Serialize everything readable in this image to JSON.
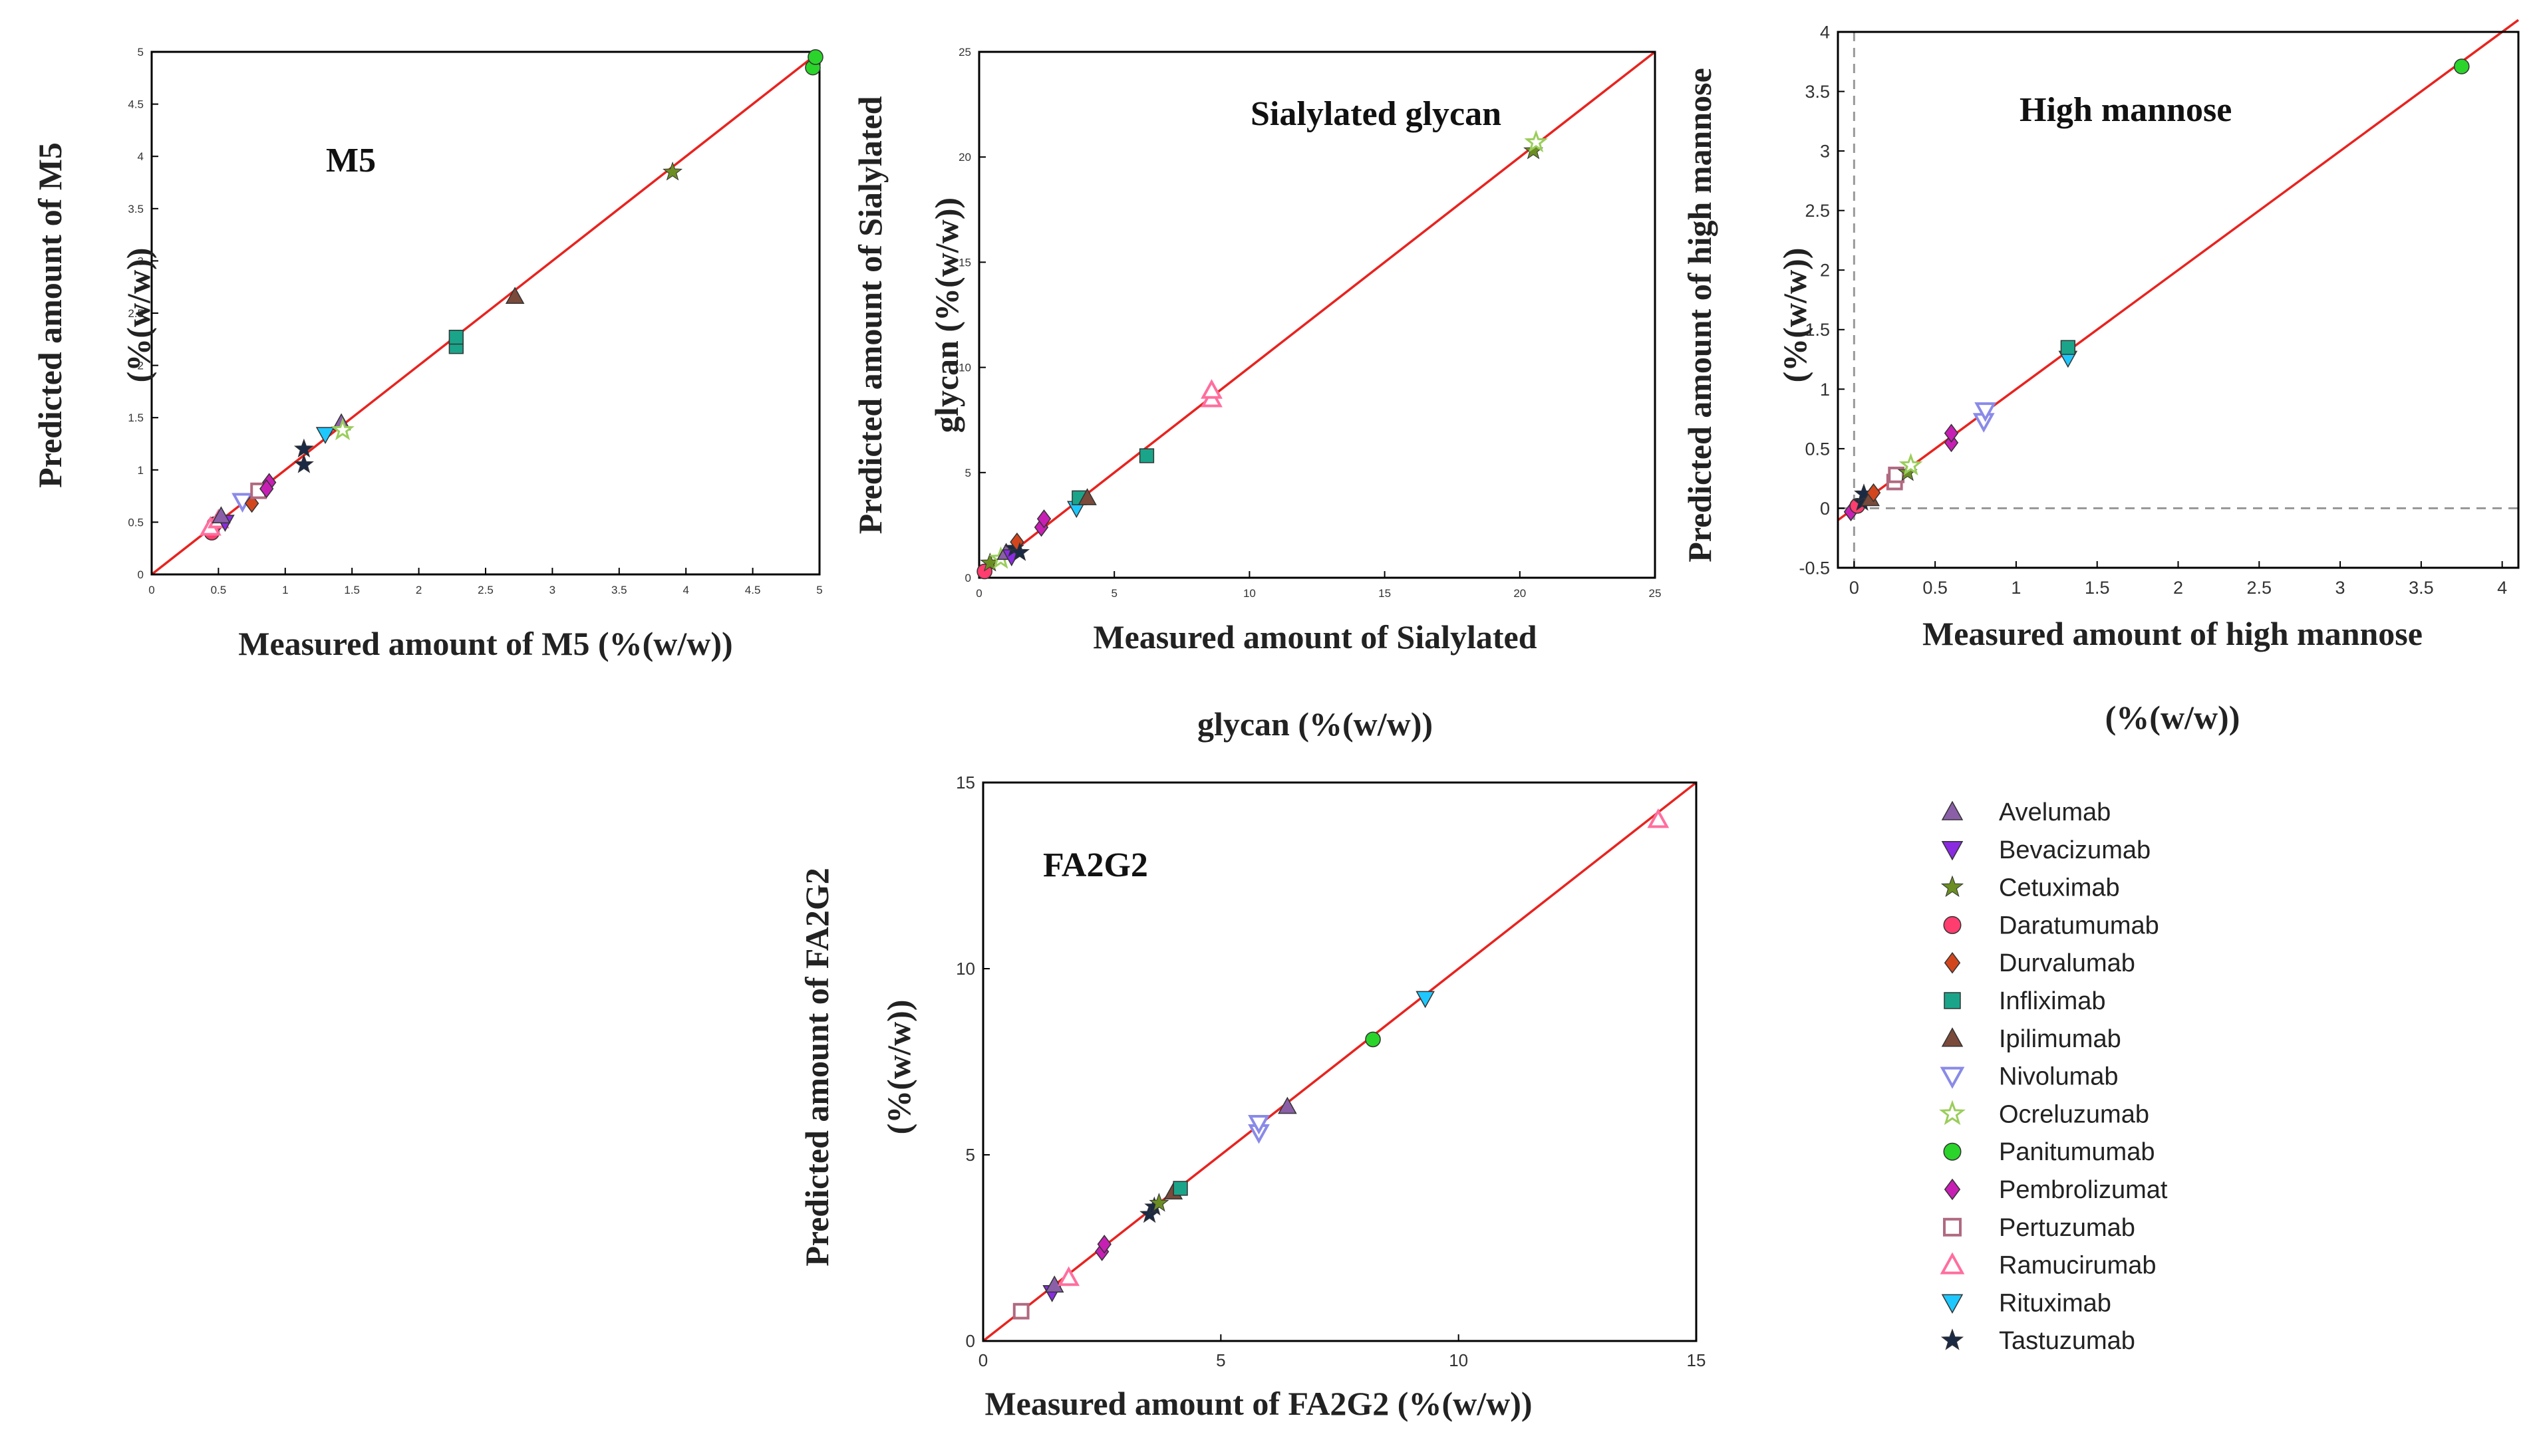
{
  "colors": {
    "frame": "#000000",
    "fit_line": "#e8231f",
    "zero_line": "#999999"
  },
  "legend": [
    {
      "name": "Avelumab",
      "marker": "triangle-up",
      "color": "#8a5fa8",
      "filled": true
    },
    {
      "name": "Bevacizumab",
      "marker": "triangle-down",
      "color": "#8a2be2",
      "filled": true
    },
    {
      "name": "Cetuximab",
      "marker": "star",
      "color": "#6b8e23",
      "filled": true
    },
    {
      "name": "Daratumumab",
      "marker": "circle",
      "color": "#ff3d6e",
      "filled": true
    },
    {
      "name": "Durvalumab",
      "marker": "diamond",
      "color": "#d2461e",
      "filled": true
    },
    {
      "name": "Infliximab",
      "marker": "square",
      "color": "#1aa58a",
      "filled": true
    },
    {
      "name": "Ipilimumab",
      "marker": "triangle-up",
      "color": "#7a4a3a",
      "filled": true
    },
    {
      "name": "Nivolumab",
      "marker": "triangle-down",
      "color": "#8a8ae8",
      "filled": false
    },
    {
      "name": "Ocreluzumab",
      "marker": "star",
      "color": "#9acd5a",
      "filled": false
    },
    {
      "name": "Panitumumab",
      "marker": "circle",
      "color": "#2ad42a",
      "filled": true
    },
    {
      "name": "Pembrolizumat",
      "marker": "diamond",
      "color": "#c71fb4",
      "filled": true
    },
    {
      "name": "Pertuzumab",
      "marker": "square",
      "color": "#b06a80",
      "filled": false
    },
    {
      "name": "Ramucirumab",
      "marker": "triangle-up",
      "color": "#ff6e9e",
      "filled": false
    },
    {
      "name": "Rituximab",
      "marker": "triangle-down",
      "color": "#1ec8ff",
      "filled": true
    },
    {
      "name": "Tastuzumab",
      "marker": "star",
      "color": "#1b2a44",
      "filled": true
    }
  ],
  "chart_data": [
    {
      "id": "m5",
      "type": "scatter",
      "title": "M5",
      "xlabel": "Measured amount of M5 (%(w/w))",
      "ylabel_lines": [
        "Predicted amount of M5",
        "(%(w/w))"
      ],
      "xlim": [
        0,
        5
      ],
      "ylim": [
        0,
        5
      ],
      "xticks": [
        0,
        0.5,
        1,
        1.5,
        2,
        2.5,
        3,
        3.5,
        4,
        4.5,
        5
      ],
      "yticks": [
        0,
        0.5,
        1,
        1.5,
        2,
        2.5,
        3,
        3.5,
        4,
        4.5,
        5
      ],
      "xtick_labels": [
        "0",
        "0.5",
        "1",
        "1.5",
        "2",
        "2.5",
        "3",
        "3.5",
        "4",
        "4.5",
        "5"
      ],
      "ytick_labels": [
        "0",
        "0.5",
        "1",
        "1.5",
        "2",
        "2.5",
        "3",
        "3.5",
        "4",
        "4.5",
        "5"
      ],
      "fit_line": [
        [
          0,
          0
        ],
        [
          5,
          5
        ]
      ],
      "points": [
        {
          "x": 0.45,
          "y": 0.4,
          "s": "Daratumumab"
        },
        {
          "x": 0.47,
          "y": 0.48,
          "s": "Daratumumab"
        },
        {
          "x": 0.44,
          "y": 0.45,
          "s": "Ramucirumab"
        },
        {
          "x": 0.5,
          "y": 0.52,
          "s": "Ramucirumab"
        },
        {
          "x": 0.55,
          "y": 0.5,
          "s": "Bevacizumab"
        },
        {
          "x": 0.52,
          "y": 0.56,
          "s": "Avelumab"
        },
        {
          "x": 0.68,
          "y": 0.7,
          "s": "Nivolumab"
        },
        {
          "x": 0.75,
          "y": 0.68,
          "s": "Durvalumab"
        },
        {
          "x": 0.8,
          "y": 0.8,
          "s": "Pertuzumab"
        },
        {
          "x": 0.88,
          "y": 0.88,
          "s": "Pembrolizumat"
        },
        {
          "x": 0.86,
          "y": 0.82,
          "s": "Pembrolizumat"
        },
        {
          "x": 1.14,
          "y": 1.05,
          "s": "Tastuzumab"
        },
        {
          "x": 1.14,
          "y": 1.2,
          "s": "Tastuzumab"
        },
        {
          "x": 1.3,
          "y": 1.34,
          "s": "Rituximab"
        },
        {
          "x": 1.42,
          "y": 1.45,
          "s": "Avelumab"
        },
        {
          "x": 1.43,
          "y": 1.38,
          "s": "Ocreluzumab"
        },
        {
          "x": 2.28,
          "y": 2.18,
          "s": "Infliximab"
        },
        {
          "x": 2.28,
          "y": 2.27,
          "s": "Infliximab"
        },
        {
          "x": 2.72,
          "y": 2.66,
          "s": "Ipilimumab"
        },
        {
          "x": 3.9,
          "y": 3.85,
          "s": "Cetuximab"
        },
        {
          "x": 4.95,
          "y": 4.85,
          "s": "Panitumumab"
        },
        {
          "x": 4.97,
          "y": 4.95,
          "s": "Panitumumab"
        }
      ]
    },
    {
      "id": "sialylated",
      "type": "scatter",
      "title": "Sialylated glycan",
      "xlabel_lines": [
        "Measured amount of Sialylated",
        "glycan (%(w/w))"
      ],
      "ylabel_lines": [
        "Predicted amount of Sialylated",
        "glycan (%(w/w))"
      ],
      "xlim": [
        0,
        25
      ],
      "ylim": [
        0,
        25
      ],
      "xticks": [
        0,
        5,
        10,
        15,
        20,
        25
      ],
      "yticks": [
        0,
        5,
        10,
        15,
        20,
        25
      ],
      "xtick_labels": [
        "0",
        "5",
        "10",
        "15",
        "20",
        "25"
      ],
      "ytick_labels": [
        "0",
        "5",
        "10",
        "15",
        "20",
        "25"
      ],
      "fit_line": [
        [
          0,
          0
        ],
        [
          25,
          25
        ]
      ],
      "points": [
        {
          "x": 0.2,
          "y": 0.3,
          "s": "Daratumumab"
        },
        {
          "x": 0.4,
          "y": 0.7,
          "s": "Cetuximab"
        },
        {
          "x": 0.8,
          "y": 0.9,
          "s": "Ocreluzumab"
        },
        {
          "x": 1.0,
          "y": 1.2,
          "s": "Avelumab"
        },
        {
          "x": 1.2,
          "y": 1.0,
          "s": "Bevacizumab"
        },
        {
          "x": 1.3,
          "y": 1.4,
          "s": "Tastuzumab"
        },
        {
          "x": 1.4,
          "y": 1.7,
          "s": "Durvalumab"
        },
        {
          "x": 1.5,
          "y": 1.2,
          "s": "Tastuzumab"
        },
        {
          "x": 2.3,
          "y": 2.4,
          "s": "Pembrolizumat"
        },
        {
          "x": 2.4,
          "y": 2.8,
          "s": "Pembrolizumat"
        },
        {
          "x": 3.6,
          "y": 3.3,
          "s": "Rituximab"
        },
        {
          "x": 3.7,
          "y": 3.8,
          "s": "Infliximab"
        },
        {
          "x": 4.0,
          "y": 3.8,
          "s": "Ipilimumab"
        },
        {
          "x": 6.2,
          "y": 5.8,
          "s": "Infliximab"
        },
        {
          "x": 8.6,
          "y": 8.5,
          "s": "Ramucirumab"
        },
        {
          "x": 8.6,
          "y": 8.9,
          "s": "Ramucirumab"
        },
        {
          "x": 20.5,
          "y": 20.3,
          "s": "Cetuximab"
        },
        {
          "x": 20.6,
          "y": 20.7,
          "s": "Ocreluzumab"
        }
      ]
    },
    {
      "id": "high-mannose",
      "type": "scatter",
      "title": "High mannose",
      "xlabel_lines": [
        "Measured amount of high mannose",
        "(%(w/w))"
      ],
      "ylabel_lines": [
        "Predicted amount of high mannose",
        "(%(w/w))"
      ],
      "xlim": [
        -0.1,
        4.1
      ],
      "ylim": [
        -0.5,
        4
      ],
      "xticks": [
        0,
        0.5,
        1,
        1.5,
        2,
        2.5,
        3,
        3.5,
        4
      ],
      "yticks": [
        -0.5,
        0,
        0.5,
        1,
        1.5,
        2,
        2.5,
        3,
        3.5,
        4
      ],
      "xtick_labels": [
        "0",
        "0.5",
        "1",
        "1.5",
        "2",
        "2.5",
        "3",
        "3.5",
        "4"
      ],
      "ytick_labels": [
        "-0.5",
        "0",
        "0.5",
        "1",
        "1.5",
        "2",
        "2.5",
        "3",
        "3.5",
        "4"
      ],
      "fit_line": [
        [
          -0.1,
          -0.1
        ],
        [
          4.1,
          4.1
        ]
      ],
      "points": [
        {
          "x": -0.02,
          "y": -0.03,
          "s": "Pembrolizumat"
        },
        {
          "x": 0.02,
          "y": 0.02,
          "s": "Daratumumab"
        },
        {
          "x": 0.05,
          "y": 0.05,
          "s": "Tastuzumab"
        },
        {
          "x": 0.06,
          "y": 0.12,
          "s": "Tastuzumab"
        },
        {
          "x": 0.1,
          "y": 0.08,
          "s": "Ipilimumab"
        },
        {
          "x": 0.12,
          "y": 0.13,
          "s": "Durvalumab"
        },
        {
          "x": 0.25,
          "y": 0.22,
          "s": "Pertuzumab"
        },
        {
          "x": 0.26,
          "y": 0.28,
          "s": "Pertuzumab"
        },
        {
          "x": 0.33,
          "y": 0.3,
          "s": "Cetuximab"
        },
        {
          "x": 0.35,
          "y": 0.36,
          "s": "Ocreluzumab"
        },
        {
          "x": 0.6,
          "y": 0.55,
          "s": "Pembrolizumat"
        },
        {
          "x": 0.6,
          "y": 0.63,
          "s": "Pembrolizumat"
        },
        {
          "x": 0.8,
          "y": 0.73,
          "s": "Nivolumab"
        },
        {
          "x": 0.81,
          "y": 0.82,
          "s": "Nivolumab"
        },
        {
          "x": 1.32,
          "y": 1.26,
          "s": "Rituximab"
        },
        {
          "x": 1.32,
          "y": 1.35,
          "s": "Infliximab"
        },
        {
          "x": 3.75,
          "y": 3.71,
          "s": "Panitumumab"
        }
      ]
    },
    {
      "id": "fa2g2",
      "type": "scatter",
      "title": "FA2G2",
      "xlabel": "Measured amount of FA2G2 (%(w/w))",
      "ylabel_lines": [
        "Predicted amount of FA2G2",
        "(%(w/w))"
      ],
      "xlim": [
        0,
        15
      ],
      "ylim": [
        0,
        15
      ],
      "xticks": [
        0,
        5,
        10,
        15
      ],
      "yticks": [
        0,
        5,
        10,
        15
      ],
      "xtick_labels": [
        "0",
        "5",
        "10",
        "15"
      ],
      "ytick_labels": [
        "0",
        "5",
        "10",
        "15"
      ],
      "fit_line": [
        [
          0,
          0
        ],
        [
          15,
          15
        ]
      ],
      "points": [
        {
          "x": 0.8,
          "y": 0.8,
          "s": "Pertuzumab"
        },
        {
          "x": 1.45,
          "y": 1.3,
          "s": "Bevacizumab"
        },
        {
          "x": 1.5,
          "y": 1.5,
          "s": "Avelumab"
        },
        {
          "x": 1.8,
          "y": 1.7,
          "s": "Ramucirumab"
        },
        {
          "x": 2.5,
          "y": 2.4,
          "s": "Pembrolizumat"
        },
        {
          "x": 2.55,
          "y": 2.6,
          "s": "Pembrolizumat"
        },
        {
          "x": 3.5,
          "y": 3.4,
          "s": "Tastuzumab"
        },
        {
          "x": 3.6,
          "y": 3.6,
          "s": "Tastuzumab"
        },
        {
          "x": 3.7,
          "y": 3.7,
          "s": "Cetuximab"
        },
        {
          "x": 4.0,
          "y": 4.0,
          "s": "Ipilimumab"
        },
        {
          "x": 4.15,
          "y": 4.1,
          "s": "Infliximab"
        },
        {
          "x": 5.8,
          "y": 5.6,
          "s": "Nivolumab"
        },
        {
          "x": 5.8,
          "y": 5.85,
          "s": "Nivolumab"
        },
        {
          "x": 6.4,
          "y": 6.3,
          "s": "Avelumab"
        },
        {
          "x": 8.2,
          "y": 8.1,
          "s": "Panitumumab"
        },
        {
          "x": 9.3,
          "y": 9.2,
          "s": "Rituximab"
        },
        {
          "x": 14.2,
          "y": 14.0,
          "s": "Ramucirumab"
        }
      ]
    }
  ]
}
